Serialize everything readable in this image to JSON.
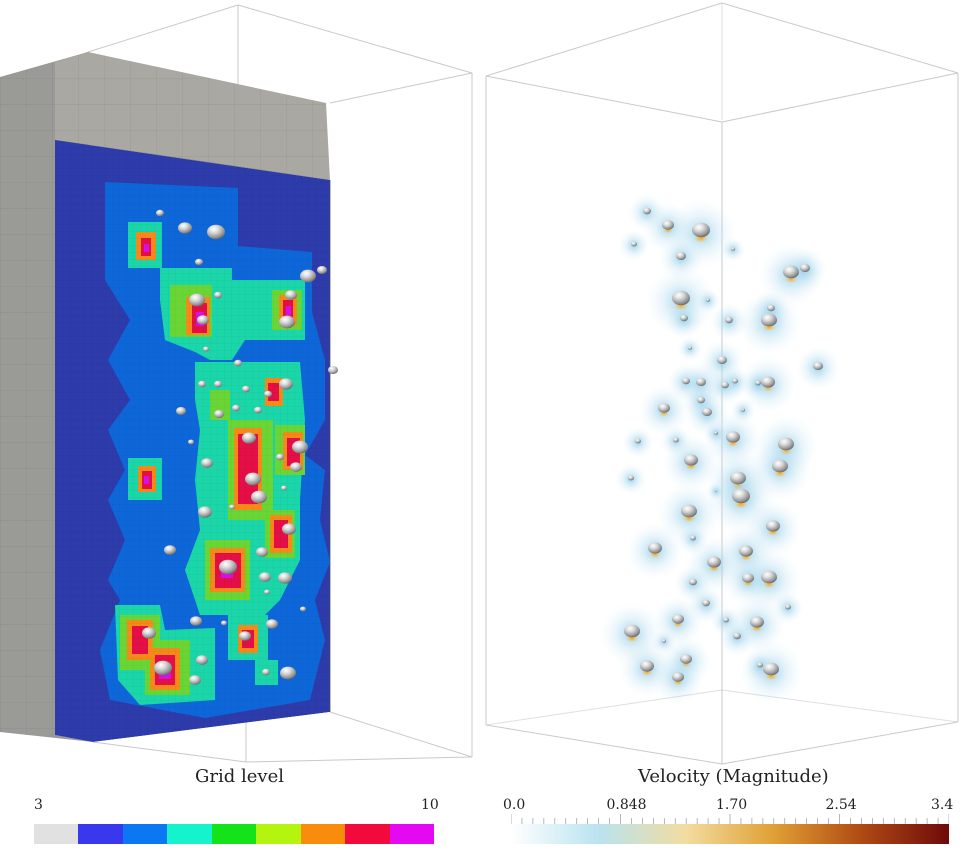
{
  "left_panel": {
    "colorbar": {
      "title": "Grid level",
      "min_label": "3",
      "max_label": "10",
      "swatches": [
        "#e1e1e1",
        "#3a38ef",
        "#0c77f2",
        "#15f3cc",
        "#14e319",
        "#b4f40f",
        "#f98c0b",
        "#f30a3c",
        "#e409f0"
      ]
    },
    "colors": {
      "base_level": "#2d3bab",
      "level_blue": "#0e67d8",
      "level_teal": "#1bd6a8",
      "level_green": "#6ad636",
      "level_orange": "#f48a18",
      "level_red": "#e40f46",
      "level_magenta": "#d611e4",
      "side_face": "#9a9a96"
    }
  },
  "right_panel": {
    "colorbar": {
      "title": "Velocity (Magnitude)",
      "ticks": [
        "0.0",
        "0.848",
        "1.70",
        "2.54",
        "3.4"
      ],
      "gradient": [
        "#ffffff",
        "#b9e3ef",
        "#f2dca0",
        "#e0a035",
        "#b04a13",
        "#6e0a0a"
      ]
    }
  },
  "bubbles_left": [
    [
      185,
      228,
      7
    ],
    [
      216,
      232,
      9
    ],
    [
      160,
      213,
      4
    ],
    [
      199,
      262,
      4
    ],
    [
      308,
      276,
      8
    ],
    [
      322,
      270,
      5
    ],
    [
      197,
      300,
      8
    ],
    [
      218,
      295,
      4
    ],
    [
      291,
      295,
      6
    ],
    [
      287,
      322,
      8
    ],
    [
      203,
      320,
      6
    ],
    [
      206,
      349,
      3
    ],
    [
      333,
      370,
      5
    ],
    [
      238,
      363,
      4
    ],
    [
      286,
      384,
      7
    ],
    [
      246,
      389,
      4
    ],
    [
      202,
      384,
      4
    ],
    [
      218,
      384,
      4
    ],
    [
      268,
      394,
      4
    ],
    [
      181,
      411,
      5
    ],
    [
      219,
      414,
      5
    ],
    [
      236,
      408,
      4
    ],
    [
      258,
      410,
      4
    ],
    [
      249,
      438,
      7
    ],
    [
      300,
      447,
      8
    ],
    [
      191,
      442,
      3
    ],
    [
      207,
      463,
      6
    ],
    [
      280,
      457,
      4
    ],
    [
      296,
      467,
      6
    ],
    [
      253,
      479,
      8
    ],
    [
      259,
      497,
      8
    ],
    [
      284,
      488,
      3
    ],
    [
      205,
      512,
      7
    ],
    [
      232,
      507,
      3
    ],
    [
      289,
      529,
      7
    ],
    [
      170,
      550,
      6
    ],
    [
      262,
      552,
      6
    ],
    [
      228,
      567,
      9
    ],
    [
      285,
      578,
      7
    ],
    [
      265,
      577,
      6
    ],
    [
      267,
      592,
      3
    ],
    [
      303,
      609,
      3
    ],
    [
      149,
      633,
      7
    ],
    [
      196,
      621,
      6
    ],
    [
      245,
      636,
      6
    ],
    [
      272,
      624,
      6
    ],
    [
      163,
      668,
      9
    ],
    [
      202,
      660,
      6
    ],
    [
      195,
      680,
      6
    ],
    [
      288,
      673,
      8
    ],
    [
      266,
      672,
      4
    ],
    [
      224,
      623,
      3
    ]
  ],
  "bubbles_right": [
    [
      647,
      211,
      4
    ],
    [
      668,
      225,
      6
    ],
    [
      701,
      230,
      9
    ],
    [
      634,
      244,
      3
    ],
    [
      681,
      256,
      5
    ],
    [
      733,
      249,
      2
    ],
    [
      791,
      272,
      8
    ],
    [
      805,
      268,
      5
    ],
    [
      681,
      298,
      9
    ],
    [
      708,
      300,
      2
    ],
    [
      771,
      308,
      4
    ],
    [
      684,
      318,
      4
    ],
    [
      729,
      320,
      4
    ],
    [
      769,
      320,
      8
    ],
    [
      690,
      348,
      2
    ],
    [
      722,
      360,
      5
    ],
    [
      818,
      366,
      5
    ],
    [
      686,
      381,
      4
    ],
    [
      701,
      382,
      5
    ],
    [
      768,
      382,
      7
    ],
    [
      725,
      385,
      4
    ],
    [
      735,
      381,
      3
    ],
    [
      758,
      383,
      3
    ],
    [
      664,
      408,
      6
    ],
    [
      701,
      400,
      4
    ],
    [
      707,
      412,
      5
    ],
    [
      743,
      410,
      2
    ],
    [
      638,
      441,
      3
    ],
    [
      676,
      440,
      3
    ],
    [
      733,
      437,
      7
    ],
    [
      716,
      433,
      2
    ],
    [
      786,
      444,
      8
    ],
    [
      691,
      460,
      7
    ],
    [
      780,
      466,
      8
    ],
    [
      738,
      478,
      8
    ],
    [
      631,
      478,
      3
    ],
    [
      741,
      496,
      9
    ],
    [
      689,
      511,
      8
    ],
    [
      716,
      491,
      1
    ],
    [
      773,
      526,
      7
    ],
    [
      693,
      538,
      3
    ],
    [
      655,
      548,
      7
    ],
    [
      746,
      551,
      7
    ],
    [
      714,
      562,
      7
    ],
    [
      769,
      577,
      8
    ],
    [
      748,
      578,
      6
    ],
    [
      693,
      582,
      4
    ],
    [
      706,
      603,
      4
    ],
    [
      788,
      607,
      3
    ],
    [
      678,
      619,
      6
    ],
    [
      726,
      620,
      3
    ],
    [
      632,
      631,
      8
    ],
    [
      757,
      622,
      7
    ],
    [
      737,
      636,
      4
    ],
    [
      686,
      659,
      6
    ],
    [
      647,
      666,
      7
    ],
    [
      771,
      669,
      8
    ],
    [
      760,
      665,
      3
    ],
    [
      678,
      677,
      6
    ],
    [
      664,
      641,
      2
    ]
  ]
}
